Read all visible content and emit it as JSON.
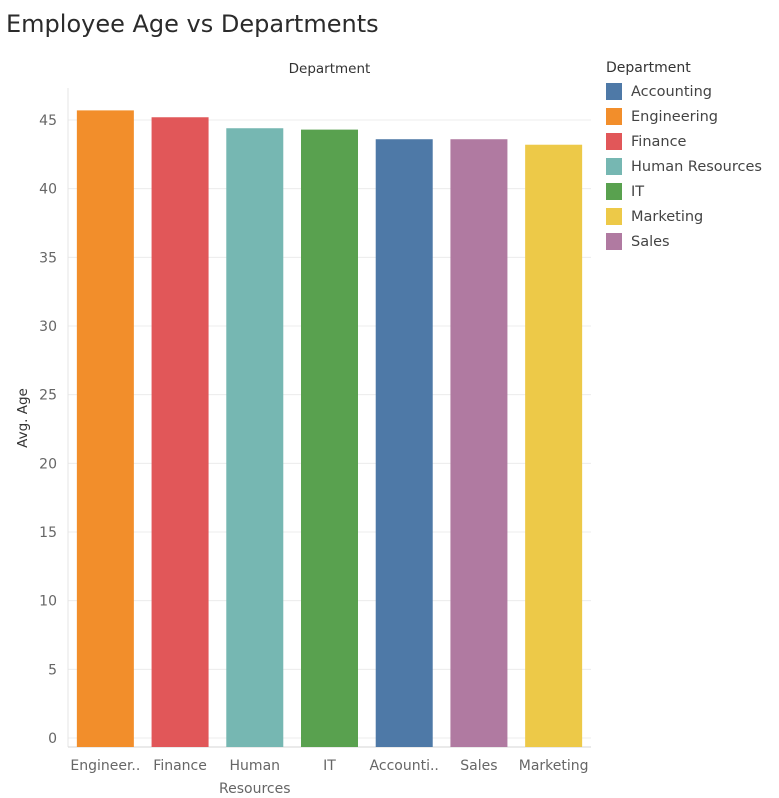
{
  "page": {
    "title": "Employee Age vs Departments"
  },
  "chart_data": {
    "type": "bar",
    "title": "Employee Age vs Departments",
    "header_label": "Department",
    "xlabel": "",
    "ylabel": "Avg. Age",
    "ylim": [
      0,
      47
    ],
    "yticks": [
      0,
      5,
      10,
      15,
      20,
      25,
      30,
      35,
      40,
      45
    ],
    "grid": true,
    "legend_position": "right",
    "categories": [
      "Engineering",
      "Finance",
      "Human Resources",
      "IT",
      "Accounting",
      "Sales",
      "Marketing"
    ],
    "category_tick_labels": [
      [
        "Engineer.."
      ],
      [
        "Finance"
      ],
      [
        "Human",
        "Resources"
      ],
      [
        "IT"
      ],
      [
        "Accounti.."
      ],
      [
        "Sales"
      ],
      [
        "Marketing"
      ]
    ],
    "values": [
      45.7,
      45.2,
      44.4,
      44.3,
      43.6,
      43.6,
      43.2
    ],
    "colors": [
      "#f28e2b",
      "#e15759",
      "#76b7b2",
      "#59a14f",
      "#4e79a7",
      "#b07aa1",
      "#edc948"
    ],
    "legend": {
      "title": "Department",
      "items": [
        {
          "label": "Accounting",
          "color": "#4e79a7"
        },
        {
          "label": "Engineering",
          "color": "#f28e2b"
        },
        {
          "label": "Finance",
          "color": "#e15759"
        },
        {
          "label": "Human Resources",
          "color": "#76b7b2"
        },
        {
          "label": "IT",
          "color": "#59a14f"
        },
        {
          "label": "Marketing",
          "color": "#edc948"
        },
        {
          "label": "Sales",
          "color": "#b07aa1"
        }
      ]
    }
  }
}
